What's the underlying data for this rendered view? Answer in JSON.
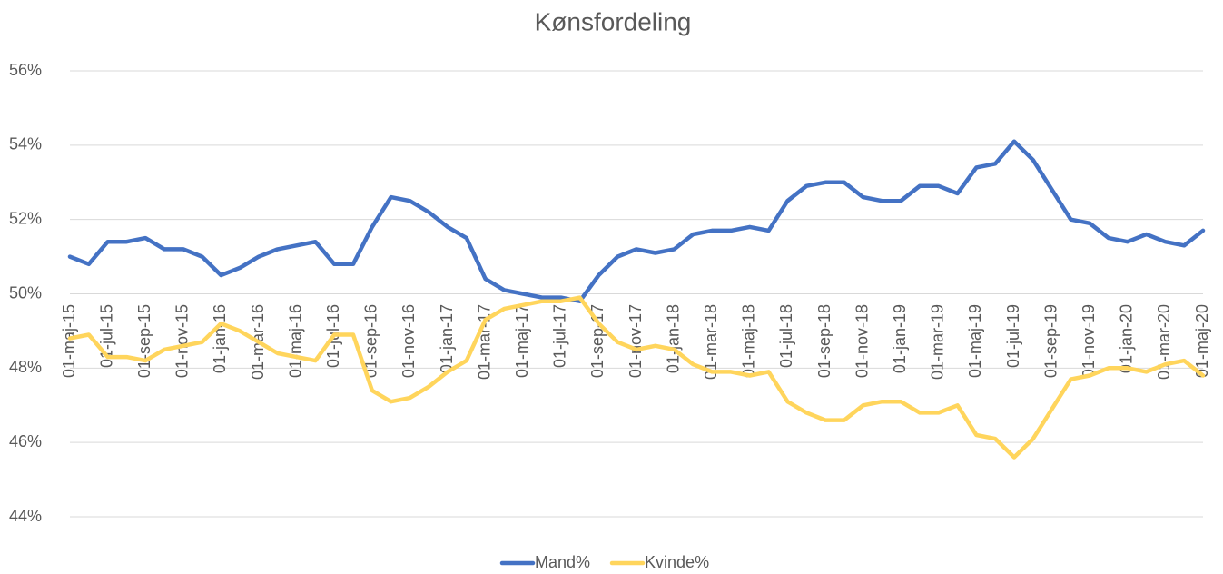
{
  "chart_data": {
    "type": "line",
    "title": "Kønsfordeling",
    "categories": [
      "01-maj-15",
      null,
      "01-jul-15",
      null,
      "01-sep-15",
      null,
      "01-nov-15",
      null,
      "01-jan-16",
      null,
      "01-mar-16",
      null,
      "01-maj-16",
      null,
      "01-jul-16",
      null,
      "01-sep-16",
      null,
      "01-nov-16",
      null,
      "01-jan-17",
      null,
      "01-mar-17",
      null,
      "01-maj-17",
      null,
      "01-jul-17",
      null,
      "01-sep-17",
      null,
      "01-nov-17",
      null,
      "01-jan-18",
      null,
      "01-mar-18",
      null,
      "01-maj-18",
      null,
      "01-jul-18",
      null,
      "01-sep-18",
      null,
      "01-nov-18",
      null,
      "01-jan-19",
      null,
      "01-mar-19",
      null,
      "01-maj-19",
      null,
      "01-jul-19",
      null,
      "01-sep-19",
      null,
      "01-nov-19",
      null,
      "01-jan-20",
      null,
      "01-mar-20",
      null,
      "01-maj-20"
    ],
    "series": [
      {
        "name": "Mand%",
        "color": "#4472c4",
        "values": [
          51.0,
          50.8,
          51.4,
          51.4,
          51.5,
          51.2,
          51.2,
          51.0,
          50.5,
          50.7,
          51.0,
          51.2,
          51.3,
          51.4,
          50.8,
          50.8,
          51.8,
          52.6,
          52.5,
          52.2,
          51.8,
          51.5,
          50.4,
          50.1,
          50.0,
          49.9,
          49.9,
          49.8,
          50.5,
          51.0,
          51.2,
          51.1,
          51.2,
          51.6,
          51.7,
          51.7,
          51.8,
          51.7,
          52.5,
          52.9,
          53.0,
          53.0,
          52.6,
          52.5,
          52.5,
          52.9,
          52.9,
          52.7,
          53.4,
          53.5,
          54.1,
          53.6,
          52.8,
          52.0,
          51.9,
          51.5,
          51.4,
          51.6,
          51.4,
          51.3,
          51.7
        ]
      },
      {
        "name": "Kvinde%",
        "color": "#ffd55c",
        "values": [
          48.8,
          48.9,
          48.3,
          48.3,
          48.2,
          48.5,
          48.6,
          48.7,
          49.2,
          49.0,
          48.7,
          48.4,
          48.3,
          48.2,
          48.9,
          48.9,
          47.4,
          47.1,
          47.2,
          47.5,
          47.9,
          48.2,
          49.3,
          49.6,
          49.7,
          49.8,
          49.8,
          49.9,
          49.2,
          48.7,
          48.5,
          48.6,
          48.5,
          48.1,
          47.9,
          47.9,
          47.8,
          47.9,
          47.1,
          46.8,
          46.6,
          46.6,
          47.0,
          47.1,
          47.1,
          46.8,
          46.8,
          47.0,
          46.2,
          46.1,
          45.6,
          46.1,
          46.9,
          47.7,
          47.8,
          48.0,
          48.0,
          47.9,
          48.1,
          48.2,
          47.8
        ]
      }
    ],
    "ylim": [
      44,
      56
    ],
    "yticks": [
      {
        "value": 44,
        "label": "44%"
      },
      {
        "value": 46,
        "label": "46%"
      },
      {
        "value": 48,
        "label": "48%"
      },
      {
        "value": 50,
        "label": "50%"
      },
      {
        "value": 52,
        "label": "52%"
      },
      {
        "value": 54,
        "label": "54%"
      },
      {
        "value": 56,
        "label": "56%"
      }
    ],
    "grid": true,
    "legend": "bottom"
  }
}
